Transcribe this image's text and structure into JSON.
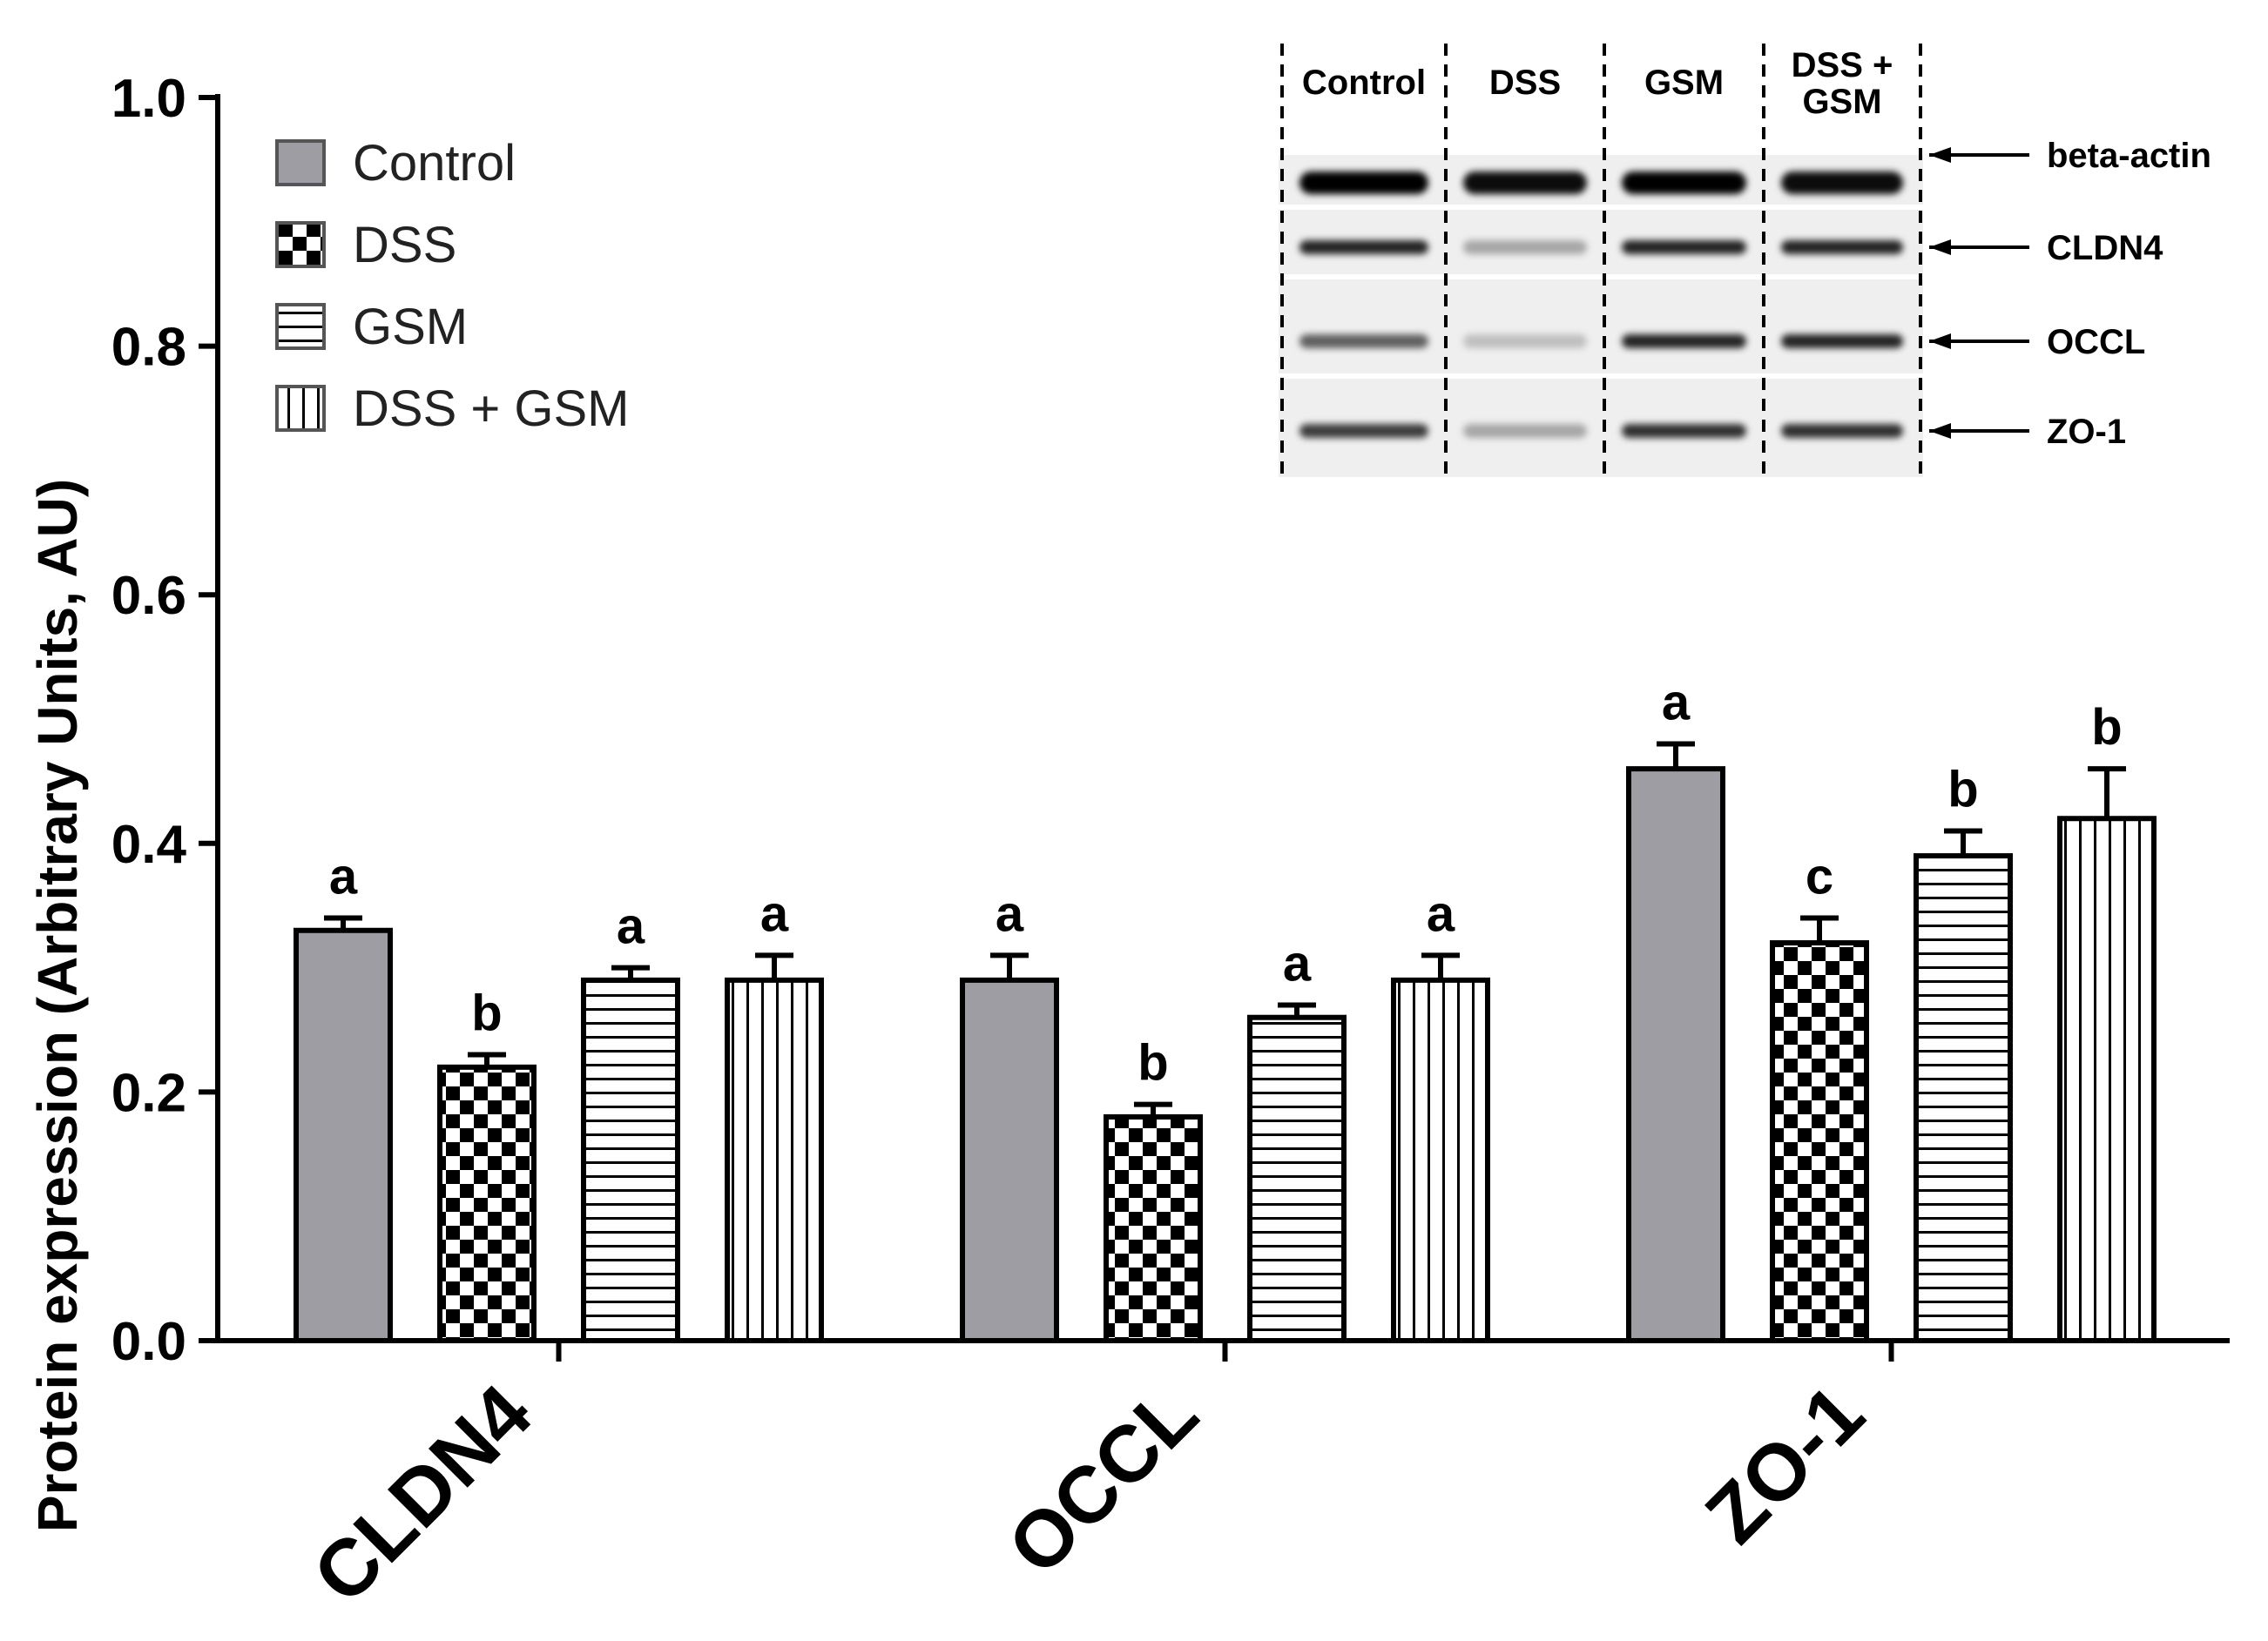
{
  "colors": {
    "control_fill": "#9d9da3",
    "outline": "#000000",
    "background": "#ffffff",
    "blot_bg": "#efefef"
  },
  "chart_data": {
    "type": "bar",
    "title": "",
    "ylabel": "Protein expression (Arbitrary Units, AU)",
    "xlabel": "",
    "ylim": [
      0.0,
      1.0
    ],
    "yticks": [
      "0.0",
      "0.2",
      "0.4",
      "0.6",
      "0.8",
      "1.0"
    ],
    "categories": [
      "CLDN4",
      "OCCL",
      "ZO-1"
    ],
    "series": [
      {
        "name": "Control",
        "pattern": "solid-gray",
        "values": [
          0.33,
          0.29,
          0.46
        ],
        "errors": [
          0.01,
          0.02,
          0.02
        ],
        "letters": [
          "a",
          "a",
          "a"
        ]
      },
      {
        "name": "DSS",
        "pattern": "checker",
        "values": [
          0.22,
          0.18,
          0.32
        ],
        "errors": [
          0.01,
          0.01,
          0.02
        ],
        "letters": [
          "b",
          "b",
          "c"
        ]
      },
      {
        "name": "GSM",
        "pattern": "horizontal-lines",
        "values": [
          0.29,
          0.26,
          0.39
        ],
        "errors": [
          0.01,
          0.01,
          0.02
        ],
        "letters": [
          "a",
          "a",
          "b"
        ]
      },
      {
        "name": "DSS + GSM",
        "pattern": "vertical-lines",
        "values": [
          0.29,
          0.29,
          0.42
        ],
        "errors": [
          0.02,
          0.02,
          0.04
        ],
        "letters": [
          "a",
          "a",
          "b"
        ]
      }
    ],
    "legend_position": "top-left",
    "inset_blot": {
      "lanes": [
        "Control",
        "DSS",
        "GSM",
        "DSS +\nGSM"
      ],
      "bands": [
        "beta-actin",
        "CLDN4",
        "OCCL",
        "ZO-1"
      ],
      "band_intensity": [
        [
          1.0,
          0.95,
          1.0,
          0.95
        ],
        [
          0.85,
          0.3,
          0.85,
          0.85
        ],
        [
          0.6,
          0.2,
          0.85,
          0.85
        ],
        [
          0.75,
          0.3,
          0.8,
          0.8
        ]
      ]
    }
  }
}
